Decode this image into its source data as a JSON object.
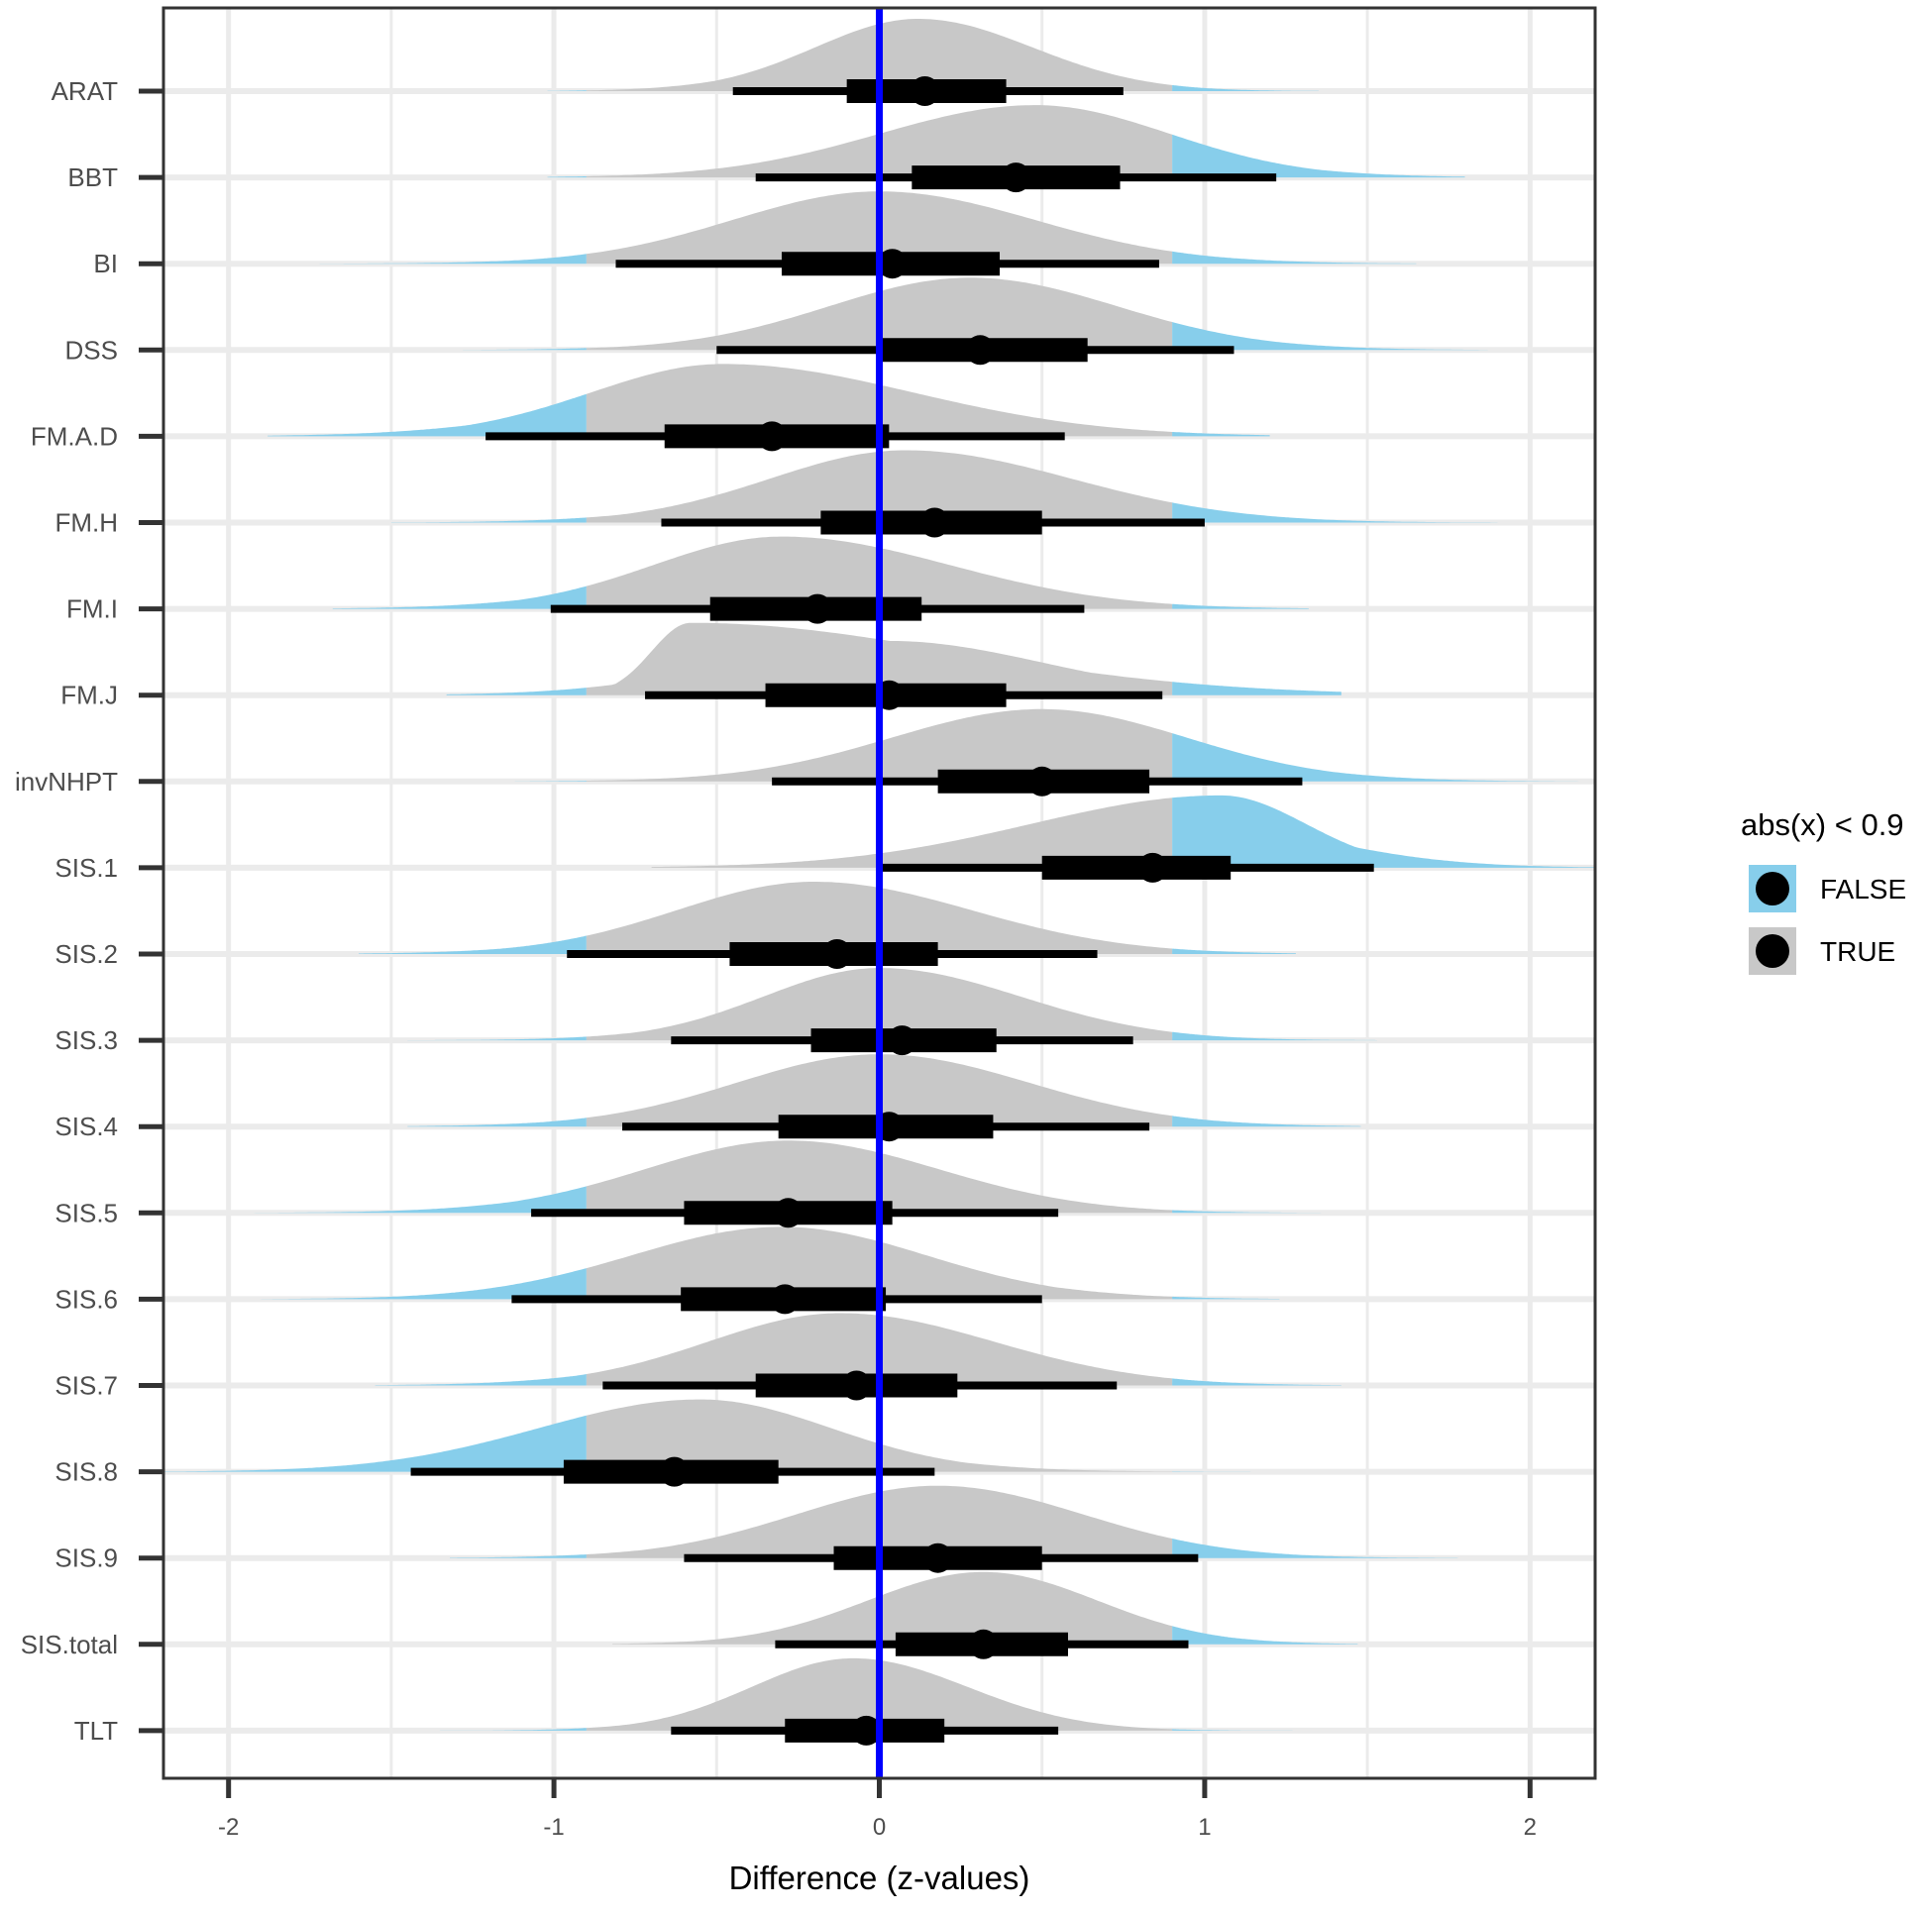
{
  "chart_data": {
    "type": "halfeye",
    "xlabel": "Difference (z-values)",
    "ylabel": "",
    "xlim": [
      -2.2,
      2.2
    ],
    "xticks": [
      -2,
      -1,
      0,
      1,
      2
    ],
    "xtick_labels": [
      "-2",
      "-1",
      "0",
      "1",
      "2"
    ],
    "reference_line": {
      "x": 0,
      "color": "#0000ff"
    },
    "threshold": 0.9,
    "grid": true,
    "legend": {
      "title": "abs(x) < 0.9",
      "placement": "right",
      "items": [
        {
          "label": "FALSE",
          "color": "#87ceeb"
        },
        {
          "label": "TRUE",
          "color": "#c8c8c8"
        }
      ]
    },
    "point_color": "#000000",
    "categories": [
      "ARAT",
      "BBT",
      "BI",
      "DSS",
      "FM.A.D",
      "FM.H",
      "FM.I",
      "FM.J",
      "invNHPT",
      "SIS.1",
      "SIS.2",
      "SIS.3",
      "SIS.4",
      "SIS.5",
      "SIS.6",
      "SIS.7",
      "SIS.8",
      "SIS.9",
      "SIS.total",
      "TLT"
    ],
    "series": [
      {
        "category": "ARAT",
        "median": 0.14,
        "interval_66": [
          -0.1,
          0.39
        ],
        "interval_95": [
          -0.45,
          0.75
        ],
        "tails": [
          -1.02,
          1.35
        ],
        "mode": 0.12
      },
      {
        "category": "BBT",
        "median": 0.42,
        "interval_66": [
          0.1,
          0.74
        ],
        "interval_95": [
          -0.38,
          1.22
        ],
        "tails": [
          -1.02,
          1.8
        ],
        "mode": 0.48
      },
      {
        "category": "BI",
        "median": 0.04,
        "interval_66": [
          -0.3,
          0.37
        ],
        "interval_95": [
          -0.81,
          0.86
        ],
        "tails": [
          -1.72,
          1.65
        ],
        "mode": 0.0
      },
      {
        "category": "DSS",
        "median": 0.31,
        "interval_66": [
          -0.01,
          0.64
        ],
        "interval_95": [
          -0.5,
          1.09
        ],
        "tails": [
          -1.28,
          1.87
        ],
        "mode": 0.28
      },
      {
        "category": "FM.A.D",
        "median": -0.33,
        "interval_66": [
          -0.66,
          0.03
        ],
        "interval_95": [
          -1.21,
          0.57
        ],
        "tails": [
          -1.88,
          1.2
        ],
        "mode": -0.48
      },
      {
        "category": "FM.H",
        "median": 0.17,
        "interval_66": [
          -0.18,
          0.5
        ],
        "interval_95": [
          -0.67,
          1.0
        ],
        "tails": [
          -1.5,
          1.9
        ],
        "mode": 0.08
      },
      {
        "category": "FM.I",
        "median": -0.19,
        "interval_66": [
          -0.52,
          0.13
        ],
        "interval_95": [
          -1.01,
          0.63
        ],
        "tails": [
          -1.68,
          1.32
        ],
        "mode": -0.3
      },
      {
        "category": "FM.J",
        "median": 0.03,
        "interval_66": [
          -0.35,
          0.39
        ],
        "interval_95": [
          -0.72,
          0.87
        ],
        "tails": [
          -1.33,
          1.42
        ],
        "mode": -0.58
      },
      {
        "category": "invNHPT",
        "median": 0.5,
        "interval_66": [
          0.18,
          0.83
        ],
        "interval_95": [
          -0.33,
          1.3
        ],
        "tails": [
          -1.12,
          2.2
        ],
        "mode": 0.5
      },
      {
        "category": "SIS.1",
        "median": 0.84,
        "interval_66": [
          0.5,
          1.08
        ],
        "interval_95": [
          0.0,
          1.52
        ],
        "tails": [
          -0.7,
          2.2
        ],
        "mode": 1.05
      },
      {
        "category": "SIS.2",
        "median": -0.13,
        "interval_66": [
          -0.46,
          0.18
        ],
        "interval_95": [
          -0.96,
          0.67
        ],
        "tails": [
          -1.6,
          1.28
        ],
        "mode": -0.2
      },
      {
        "category": "SIS.3",
        "median": 0.07,
        "interval_66": [
          -0.21,
          0.36
        ],
        "interval_95": [
          -0.64,
          0.78
        ],
        "tails": [
          -1.45,
          1.53
        ],
        "mode": 0.0
      },
      {
        "category": "SIS.4",
        "median": 0.03,
        "interval_66": [
          -0.31,
          0.35
        ],
        "interval_95": [
          -0.79,
          0.83
        ],
        "tails": [
          -1.45,
          1.48
        ],
        "mode": 0.0
      },
      {
        "category": "SIS.5",
        "median": -0.28,
        "interval_66": [
          -0.6,
          0.04
        ],
        "interval_95": [
          -1.07,
          0.55
        ],
        "tails": [
          -2.2,
          1.65
        ],
        "mode": -0.28
      },
      {
        "category": "SIS.6",
        "median": -0.29,
        "interval_66": [
          -0.61,
          0.02
        ],
        "interval_95": [
          -1.13,
          0.5
        ],
        "tails": [
          -1.9,
          1.23
        ],
        "mode": -0.3
      },
      {
        "category": "SIS.7",
        "median": -0.07,
        "interval_66": [
          -0.38,
          0.24
        ],
        "interval_95": [
          -0.85,
          0.73
        ],
        "tails": [
          -1.55,
          1.42
        ],
        "mode": -0.12
      },
      {
        "category": "SIS.8",
        "median": -0.63,
        "interval_66": [
          -0.97,
          -0.31
        ],
        "interval_95": [
          -1.44,
          0.17
        ],
        "tails": [
          -2.2,
          1.28
        ],
        "mode": -0.55
      },
      {
        "category": "SIS.9",
        "median": 0.18,
        "interval_66": [
          -0.14,
          0.5
        ],
        "interval_95": [
          -0.6,
          0.98
        ],
        "tails": [
          -1.32,
          1.78
        ],
        "mode": 0.18
      },
      {
        "category": "SIS.total",
        "median": 0.32,
        "interval_66": [
          0.05,
          0.58
        ],
        "interval_95": [
          -0.32,
          0.95
        ],
        "tails": [
          -0.82,
          1.47
        ],
        "mode": 0.32
      },
      {
        "category": "TLT",
        "median": -0.04,
        "interval_66": [
          -0.29,
          0.2
        ],
        "interval_95": [
          -0.64,
          0.55
        ],
        "tails": [
          -1.42,
          1.35
        ],
        "mode": -0.08
      }
    ]
  }
}
